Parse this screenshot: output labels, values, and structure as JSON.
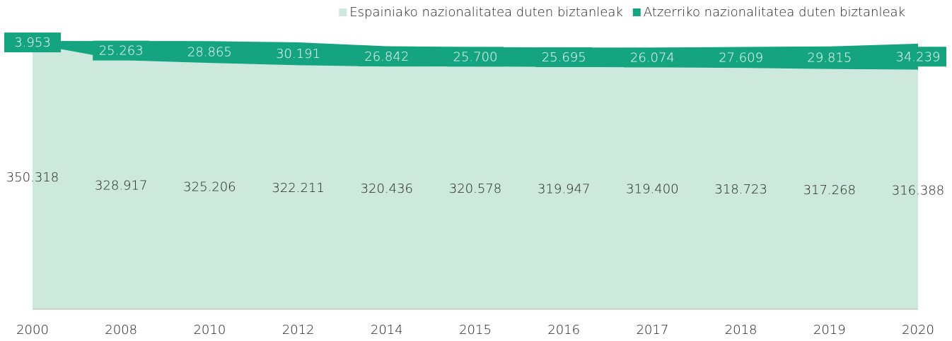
{
  "chart_data": {
    "type": "area",
    "stacked": true,
    "categories": [
      "2000",
      "2008",
      "2010",
      "2012",
      "2014",
      "2015",
      "2016",
      "2017",
      "2018",
      "2019",
      "2020"
    ],
    "series": [
      {
        "name": "Espainiako nazionalitatea duten biztanleak",
        "color": "#cde8dd",
        "values": [
          350318,
          328917,
          325206,
          322211,
          320436,
          320578,
          319947,
          319400,
          318723,
          317268,
          316388
        ],
        "value_labels": [
          "350.318",
          "328.917",
          "325.206",
          "322.211",
          "320.436",
          "320.578",
          "319.947",
          "319.400",
          "318.723",
          "317.268",
          "316.388"
        ]
      },
      {
        "name": "Atzerriko nazionalitatea duten biztanleak",
        "color": "#14a47f",
        "values": [
          3953,
          25263,
          28865,
          30191,
          26842,
          25700,
          25695,
          26074,
          27609,
          29815,
          34239
        ],
        "value_labels": [
          "3.953",
          "25.263",
          "28.865",
          "30.191",
          "26.842",
          "25.700",
          "25.695",
          "26.074",
          "27.609",
          "29.815",
          "34.239"
        ]
      }
    ],
    "legend": "top-right"
  }
}
